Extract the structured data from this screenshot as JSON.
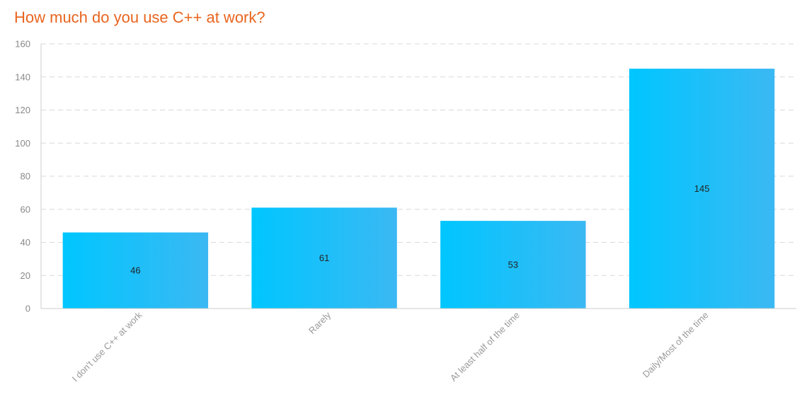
{
  "chart_data": {
    "type": "bar",
    "title": "How much do you use C++ at work?",
    "categories": [
      "I don't use C++ at work",
      "Rarely",
      "At least half of the time",
      "Daily/Most of the time"
    ],
    "values": [
      46,
      61,
      53,
      145
    ],
    "ylim": [
      0,
      160
    ],
    "yticks": [
      0,
      20,
      40,
      60,
      80,
      100,
      120,
      140,
      160
    ],
    "xlabel": "",
    "ylabel": "",
    "grid": true,
    "legend": "none",
    "colors": {
      "bar_start": "#00c6ff",
      "bar_end": "#3bb8f3",
      "title": "#e8651f"
    }
  }
}
